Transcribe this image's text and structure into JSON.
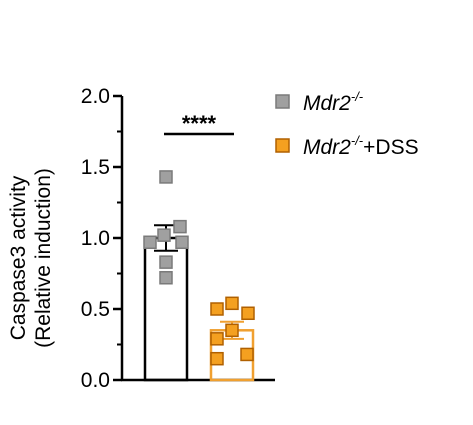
{
  "chart_data": {
    "type": "bar",
    "title": "",
    "xlabel": "",
    "ylabel": [
      "Caspase3 activity",
      "(Relative induction)"
    ],
    "ylim": [
      0,
      2.0
    ],
    "yticks": [
      0.0,
      0.5,
      1.0,
      1.5,
      2.0
    ],
    "ytick_labels": [
      "0.0",
      "0.5",
      "1.0",
      "1.5",
      "2.0"
    ],
    "grid": false,
    "legend_position": "right",
    "significance": "****",
    "series": [
      {
        "key": "mdr2",
        "legend_base": "Mdr2",
        "legend_sup": "-/-",
        "legend_suffix": "",
        "mean": 1.0,
        "sem": 0.09,
        "bar_color": "#000000",
        "marker_fill": "#a0a0a0",
        "marker_edge": "#7a7a7a",
        "points": [
          1.43,
          1.08,
          1.02,
          0.97,
          0.97,
          0.83,
          0.72
        ]
      },
      {
        "key": "mdr2_dss",
        "legend_base": "Mdr2",
        "legend_sup": "-/-",
        "legend_suffix": "+DSS",
        "mean": 0.35,
        "sem": 0.06,
        "bar_color": "#f0a030",
        "marker_fill": "#f4a020",
        "marker_edge": "#b06000",
        "points": [
          0.54,
          0.5,
          0.47,
          0.35,
          0.29,
          0.18,
          0.15
        ]
      }
    ]
  }
}
